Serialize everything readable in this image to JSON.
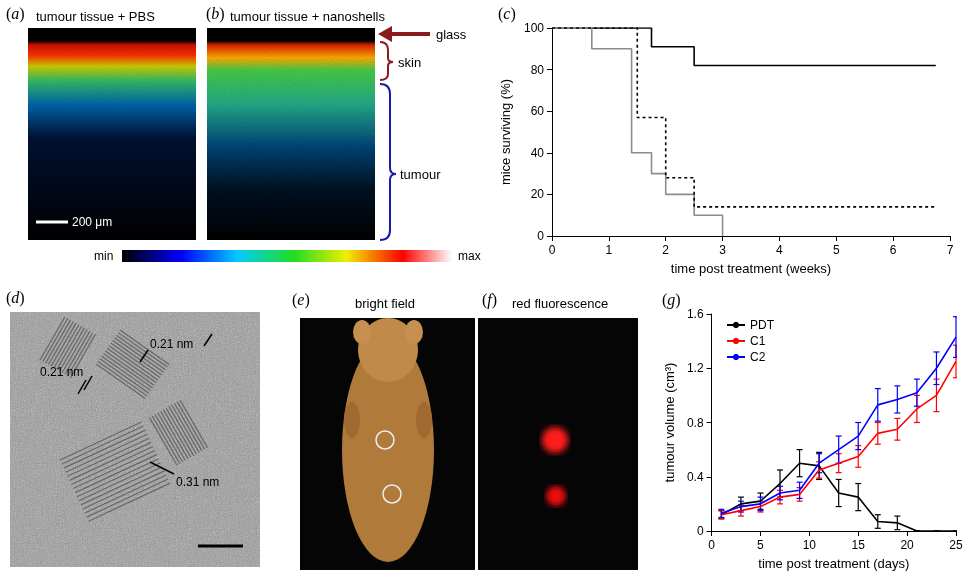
{
  "chart_data": [
    {
      "panel": "(c)",
      "type": "step",
      "xlabel": "time post treatment (weeks)",
      "ylabel": "mice surviving (%)",
      "xlim": [
        0,
        7
      ],
      "xticks": [
        0,
        1,
        2,
        3,
        4,
        5,
        6,
        7
      ],
      "ylim": [
        0,
        100
      ],
      "yticks": [
        0,
        20,
        40,
        60,
        80,
        100
      ],
      "grid": false,
      "series": [
        {
          "color": "#000000",
          "line_style": "solid",
          "x": [
            0,
            1.75,
            2.5,
            6.75
          ],
          "values": [
            100,
            91,
            82,
            82
          ]
        },
        {
          "color": "#8c8c8c",
          "line_style": "solid",
          "x": [
            0,
            0.7,
            1.4,
            1.75,
            2.0,
            2.5,
            3.0
          ],
          "values": [
            100,
            90,
            40,
            30,
            20,
            10,
            0
          ]
        },
        {
          "color": "#000000",
          "line_style": "dotted",
          "x": [
            0,
            1.5,
            2.0,
            2.5,
            6.75
          ],
          "values": [
            100,
            57,
            28,
            14,
            14
          ]
        }
      ]
    },
    {
      "panel": "(g)",
      "type": "line",
      "xlabel": "time post treatment (days)",
      "ylabel": "tumour volume (cm³)",
      "xlim": [
        0,
        25
      ],
      "xticks": [
        0,
        5,
        10,
        15,
        20,
        25
      ],
      "ylim": [
        0,
        1.6
      ],
      "yticks": [
        0,
        0.4,
        0.8,
        1.2,
        1.6
      ],
      "grid": false,
      "legend": "top-left",
      "x": [
        1,
        3,
        5,
        7,
        9,
        11,
        13,
        15,
        17,
        19,
        21,
        23,
        25
      ],
      "series": [
        {
          "name": "PDT",
          "color": "#000000",
          "values": [
            0.12,
            0.2,
            0.22,
            0.35,
            0.5,
            0.48,
            0.28,
            0.25,
            0.07,
            0.06,
            0.0,
            0.0,
            0.0
          ],
          "errors": [
            0.03,
            0.05,
            0.06,
            0.1,
            0.1,
            0.1,
            0.1,
            0.1,
            0.05,
            0.05,
            0.0,
            0.0,
            0.0
          ]
        },
        {
          "name": "C1",
          "color": "#ff0000",
          "values": [
            0.12,
            0.15,
            0.18,
            0.25,
            0.27,
            0.45,
            0.5,
            0.55,
            0.72,
            0.75,
            0.9,
            1.0,
            1.25
          ],
          "errors": [
            0.03,
            0.04,
            0.04,
            0.05,
            0.05,
            0.06,
            0.07,
            0.08,
            0.08,
            0.08,
            0.1,
            0.12,
            0.12
          ]
        },
        {
          "name": "C2",
          "color": "#0000ff",
          "values": [
            0.13,
            0.18,
            0.2,
            0.28,
            0.3,
            0.5,
            0.6,
            0.7,
            0.93,
            0.97,
            1.02,
            1.2,
            1.43
          ],
          "errors": [
            0.03,
            0.04,
            0.05,
            0.05,
            0.06,
            0.07,
            0.1,
            0.1,
            0.12,
            0.1,
            0.1,
            0.12,
            0.15
          ]
        }
      ]
    }
  ],
  "image_panels": [
    {
      "panel": "(a)",
      "title": "tumour tissue + PBS",
      "scale_bar": "200 μm"
    },
    {
      "panel": "(b)",
      "title": "tumour tissue + nanoshells",
      "annotations": [
        "glass",
        "skin",
        "tumour"
      ]
    },
    {
      "colorbar": [
        "min",
        "max"
      ]
    },
    {
      "panel": "(d)",
      "annotations": [
        "0.21 nm",
        "0.21 nm",
        "0.31 nm"
      ]
    },
    {
      "panel": "(e)",
      "title": "bright field"
    },
    {
      "panel": "(f)",
      "title": "red fluorescence"
    }
  ]
}
